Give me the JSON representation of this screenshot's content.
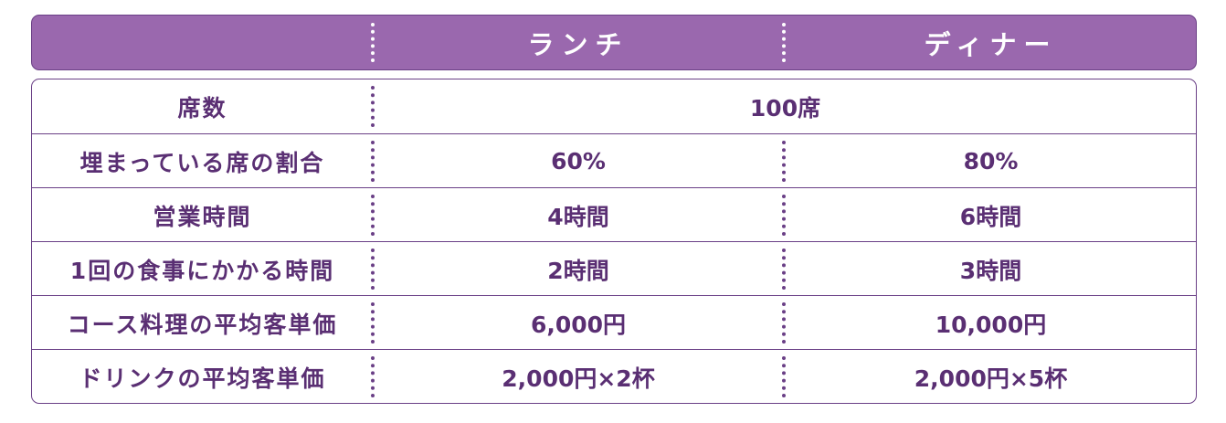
{
  "header": {
    "col1": "",
    "col2": "ランチ",
    "col3": "ディナー"
  },
  "rows": [
    {
      "label": "席数",
      "merged": "100席"
    },
    {
      "label": "埋まっている席の割合",
      "lunch": "60%",
      "dinner": "80%"
    },
    {
      "label": "営業時間",
      "lunch": "4時間",
      "dinner": "6時間"
    },
    {
      "label": "1回の食事にかかる時間",
      "lunch": "2時間",
      "dinner": "3時間"
    },
    {
      "label": "コース料理の平均客単価",
      "lunch": "6,000円",
      "dinner": "10,000円"
    },
    {
      "label": "ドリンクの平均客単価",
      "lunch": "2,000円×2杯",
      "dinner": "2,000円×5杯"
    }
  ],
  "colors": {
    "header_bg": "#9a68ae",
    "border": "#6a3f86",
    "text": "#5a2f73"
  }
}
